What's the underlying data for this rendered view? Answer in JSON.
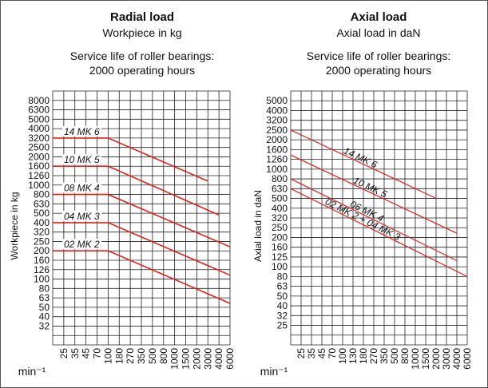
{
  "chart_data": [
    {
      "type": "line",
      "title": "Radial load",
      "subtitle": "Workpiece in kg",
      "subtitle2": "Service life of roller bearings:",
      "subtitle3": "2000 operating hours",
      "ylabel": "Workpiece in kg",
      "xlabel": "min⁻¹",
      "x_ticks": [
        "25",
        "35",
        "45",
        "70",
        "100",
        "180",
        "270",
        "350",
        "500",
        "800",
        "1000",
        "1500",
        "2000",
        "3000",
        "4000",
        "6000"
      ],
      "y_ticks": [
        "8000",
        "6300",
        "5000",
        "4000",
        "3200",
        "2500",
        "2000",
        "1600",
        "1260",
        "1000",
        "800",
        "630",
        "500",
        "400",
        "320",
        "250",
        "200",
        "160",
        "126",
        "100",
        "80",
        "63",
        "50",
        "40",
        "32"
      ],
      "series": [
        {
          "name": "14 MK 6",
          "color": "#e0201b",
          "points": [
            [
              "25",
              3200
            ],
            [
              "100",
              3200
            ],
            [
              "3000",
              1100
            ]
          ]
        },
        {
          "name": "10 MK 5",
          "color": "#e0201b",
          "points": [
            [
              "25",
              1600
            ],
            [
              "100",
              1600
            ],
            [
              "4000",
              480
            ]
          ]
        },
        {
          "name": "08 MK 4",
          "color": "#e0201b",
          "points": [
            [
              "25",
              800
            ],
            [
              "100",
              800
            ],
            [
              "6000",
              220
            ]
          ]
        },
        {
          "name": "04 MK 3",
          "color": "#e0201b",
          "points": [
            [
              "25",
              400
            ],
            [
              "100",
              400
            ],
            [
              "6000",
              110
            ]
          ]
        },
        {
          "name": "02 MK 2",
          "color": "#e0201b",
          "points": [
            [
              "25",
              200
            ],
            [
              "100",
              200
            ],
            [
              "6000",
              55
            ]
          ]
        }
      ]
    },
    {
      "type": "line",
      "title": "Axial load",
      "subtitle": "Axial load in daN",
      "subtitle2": "Service life of roller bearings:",
      "subtitle3": "2000 operating hours",
      "ylabel": "Axial load in daN",
      "xlabel": "min⁻¹",
      "x_ticks": [
        "25",
        "35",
        "45",
        "70",
        "100",
        "130",
        "180",
        "270",
        "350",
        "500",
        "800",
        "1000",
        "1500",
        "2000",
        "3000",
        "4000",
        "6000"
      ],
      "y_ticks": [
        "5000",
        "4000",
        "3200",
        "2500",
        "2000",
        "1600",
        "1260",
        "1000",
        "800",
        "630",
        "500",
        "400",
        "320",
        "250",
        "200",
        "160",
        "125",
        "100",
        "80",
        "63",
        "50",
        "40",
        "32",
        "25"
      ],
      "series": [
        {
          "name": "14 MK 6",
          "color": "#e0201b",
          "points": [
            [
              "25",
              2500
            ],
            [
              "2000",
              500
            ]
          ]
        },
        {
          "name": "10 MK 5",
          "color": "#e0201b",
          "points": [
            [
              "25",
              1400
            ],
            [
              "4000",
              220
            ]
          ]
        },
        {
          "name": "06 MK 4",
          "color": "#e0201b",
          "points": [
            [
              "25",
              800
            ],
            [
              "4000",
              115
            ]
          ]
        },
        {
          "name": "02 MK 2 + 04 MK 3",
          "color": "#e0201b",
          "points": [
            [
              "25",
              630
            ],
            [
              "6000",
              80
            ]
          ]
        }
      ]
    }
  ]
}
